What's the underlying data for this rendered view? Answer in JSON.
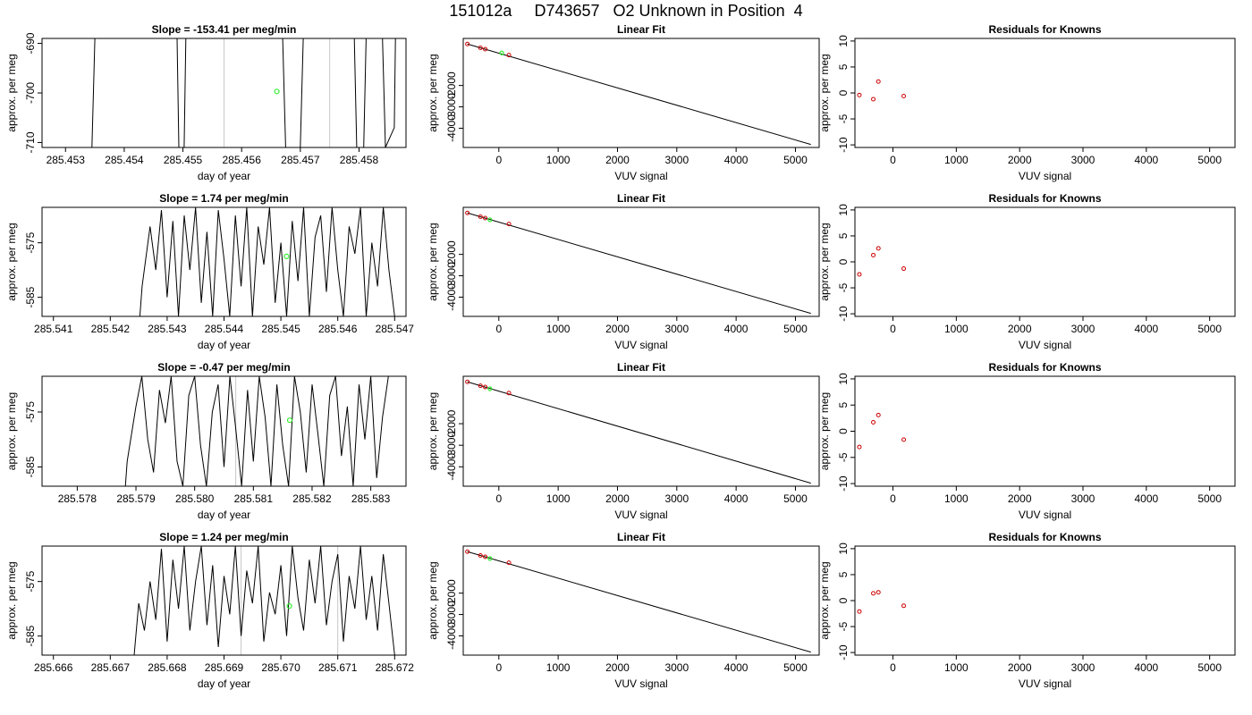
{
  "title": "151012a     D743657   O2 Unknown in Position  4",
  "colors": {
    "known_point": "#cc0000",
    "unknown_point": "#33ee33",
    "marker_line": "#c8c8c8",
    "ink": "#000000"
  },
  "chart_data": [
    {
      "type": "line",
      "row": 0,
      "col": 0,
      "title": "Slope =  -153.41  per meg/min",
      "xlabel": "day of year",
      "ylabel": "approx. per meg",
      "xlim": [
        285.4526,
        285.4588
      ],
      "ylim": [
        -711,
        -689
      ],
      "xticks": [
        285.453,
        285.454,
        285.455,
        285.456,
        285.457,
        285.458
      ],
      "xtick_labels": [
        "285.453",
        "285.454",
        "285.455",
        "285.456",
        "285.457",
        "285.458"
      ],
      "yticks": [
        -690,
        -700,
        -710
      ],
      "ytick_labels": [
        "-690",
        "-700",
        "-710"
      ],
      "vlines": [
        285.4557,
        285.4575
      ],
      "trace": {
        "x": [
          285.45345,
          285.4535,
          285.4549,
          285.45493,
          285.45502,
          285.45505,
          285.4567,
          285.45675,
          285.457,
          285.45705,
          285.45792,
          285.45796,
          285.45808,
          285.45812,
          285.4584,
          285.45845,
          285.4586,
          285.45862
        ],
        "y": [
          -711,
          -689,
          -689,
          -711,
          -711,
          -689,
          -689,
          -711,
          -711,
          -689,
          -689,
          -711,
          -711,
          -689,
          -689,
          -711,
          -707,
          -689
        ]
      },
      "point": {
        "x": 285.4566,
        "y": -699.7
      }
    },
    {
      "type": "scatter",
      "row": 0,
      "col": 1,
      "title": "Linear Fit",
      "xlabel": "VUV signal",
      "ylabel": "approx. per meg",
      "xlim": [
        -600,
        5400
      ],
      "ylim": [
        -4900,
        200
      ],
      "xticks": [
        0,
        1000,
        2000,
        3000,
        4000,
        5000
      ],
      "xtick_labels": [
        "0",
        "1000",
        "2000",
        "3000",
        "4000",
        "5000"
      ],
      "yticks": [
        -2000,
        -3000,
        -4000
      ],
      "ytick_labels": [
        "-2000",
        "-3000",
        "-4000"
      ],
      "fit_line": {
        "x": [
          -530,
          5260
        ],
        "y": [
          -60,
          -4760
        ]
      },
      "knowns": {
        "x": [
          -530,
          -310,
          -230,
          170
        ],
        "y": [
          -60,
          -240,
          -300,
          -580
        ]
      },
      "unknown": {
        "x": 50,
        "y": -480
      }
    },
    {
      "type": "scatter",
      "row": 0,
      "col": 2,
      "title": "Residuals for Knowns",
      "xlabel": "VUV signal",
      "ylabel": "approx. per meg",
      "xlim": [
        -600,
        5400
      ],
      "ylim": [
        -10.5,
        10.5
      ],
      "xticks": [
        0,
        1000,
        2000,
        3000,
        4000,
        5000
      ],
      "xtick_labels": [
        "0",
        "1000",
        "2000",
        "3000",
        "4000",
        "5000"
      ],
      "yticks": [
        10,
        5,
        0,
        -5,
        -10
      ],
      "ytick_labels": [
        "10",
        "5",
        "0",
        "-5",
        "-10"
      ],
      "knowns": {
        "x": [
          -530,
          -310,
          -230,
          170
        ],
        "y": [
          -0.4,
          -1.2,
          2.2,
          -0.6
        ]
      }
    },
    {
      "type": "line",
      "row": 1,
      "col": 0,
      "title": "Slope =  1.74  per meg/min",
      "xlabel": "day of year",
      "ylabel": "approx. per meg",
      "xlim": [
        285.5408,
        285.5472
      ],
      "ylim": [
        -588.5,
        -568.5
      ],
      "xticks": [
        285.541,
        285.542,
        285.543,
        285.544,
        285.545,
        285.546,
        285.547
      ],
      "xtick_labels": [
        "285.541",
        "285.542",
        "285.543",
        "285.544",
        "285.545",
        "285.546",
        "285.547"
      ],
      "yticks": [
        -575,
        -585
      ],
      "ytick_labels": [
        "-575",
        "-585"
      ],
      "vlines": [],
      "trace": {
        "x": [
          285.54252,
          285.54256,
          285.5427,
          285.5428,
          285.5429,
          285.543,
          285.5431,
          285.5432,
          285.5433,
          285.5434,
          285.5435,
          285.5436,
          285.5437,
          285.5438,
          285.5439,
          285.544,
          285.5441,
          285.5442,
          285.5443,
          285.5444,
          285.5445,
          285.5446,
          285.5447,
          285.5448,
          285.5449,
          285.545,
          285.5451,
          285.5452,
          285.5453,
          285.5454,
          285.5455,
          285.5456,
          285.5457,
          285.5458,
          285.5459,
          285.546,
          285.5461,
          285.5462,
          285.5463,
          285.5464,
          285.5465,
          285.5466,
          285.5467,
          285.5468,
          285.5469,
          285.547
        ],
        "y": [
          -588.5,
          -583,
          -572,
          -580,
          -569,
          -585,
          -571,
          -588.5,
          -570,
          -580,
          -568.5,
          -586,
          -573,
          -588.5,
          -569,
          -578,
          -588.5,
          -570,
          -583,
          -568.5,
          -588.5,
          -572,
          -579,
          -568.5,
          -586,
          -575,
          -588.5,
          -571,
          -582,
          -568.5,
          -588.5,
          -574,
          -570,
          -584,
          -568.5,
          -580,
          -588.5,
          -572,
          -577,
          -568.5,
          -588.5,
          -575,
          -583,
          -568.5,
          -580,
          -588.5
        ]
      },
      "point": {
        "x": 285.5451,
        "y": -577.5
      }
    },
    {
      "type": "scatter",
      "row": 1,
      "col": 1,
      "title": "Linear Fit",
      "xlabel": "VUV signal",
      "ylabel": "approx. per meg",
      "xlim": [
        -600,
        5400
      ],
      "ylim": [
        -4900,
        200
      ],
      "xticks": [
        0,
        1000,
        2000,
        3000,
        4000,
        5000
      ],
      "xtick_labels": [
        "0",
        "1000",
        "2000",
        "3000",
        "4000",
        "5000"
      ],
      "yticks": [
        -2000,
        -3000,
        -4000
      ],
      "ytick_labels": [
        "-2000",
        "-3000",
        "-4000"
      ],
      "fit_line": {
        "x": [
          -530,
          5260
        ],
        "y": [
          -60,
          -4760
        ]
      },
      "knowns": {
        "x": [
          -530,
          -310,
          -230,
          170
        ],
        "y": [
          -60,
          -240,
          -300,
          -580
        ]
      },
      "unknown": {
        "x": -150,
        "y": -380
      }
    },
    {
      "type": "scatter",
      "row": 1,
      "col": 2,
      "title": "Residuals for Knowns",
      "xlabel": "VUV signal",
      "ylabel": "approx. per meg",
      "xlim": [
        -600,
        5400
      ],
      "ylim": [
        -10.5,
        10.5
      ],
      "xticks": [
        0,
        1000,
        2000,
        3000,
        4000,
        5000
      ],
      "xtick_labels": [
        "0",
        "1000",
        "2000",
        "3000",
        "4000",
        "5000"
      ],
      "yticks": [
        10,
        5,
        0,
        -5,
        -10
      ],
      "ytick_labels": [
        "10",
        "5",
        "0",
        "-5",
        "-10"
      ],
      "knowns": {
        "x": [
          -530,
          -310,
          -230,
          170
        ],
        "y": [
          -2.4,
          1.3,
          2.6,
          -1.3
        ]
      }
    },
    {
      "type": "line",
      "row": 2,
      "col": 0,
      "title": "Slope =  -0.47  per meg/min",
      "xlabel": "day of year",
      "ylabel": "approx. per meg",
      "xlim": [
        285.5774,
        285.5836
      ],
      "ylim": [
        -588.5,
        -568.5
      ],
      "xticks": [
        285.578,
        285.579,
        285.58,
        285.581,
        285.582,
        285.583
      ],
      "xtick_labels": [
        "285.578",
        "285.579",
        "285.580",
        "285.581",
        "285.582",
        "285.583"
      ],
      "yticks": [
        -575,
        -585
      ],
      "ytick_labels": [
        "-575",
        "-585"
      ],
      "vlines": [
        285.5807
      ],
      "trace": {
        "x": [
          285.57882,
          285.57885,
          285.579,
          285.5791,
          285.5792,
          285.5793,
          285.5794,
          285.5795,
          285.5796,
          285.5797,
          285.5798,
          285.5799,
          285.58,
          285.5801,
          285.5802,
          285.5803,
          285.5804,
          285.5805,
          285.5806,
          285.5807,
          285.5808,
          285.5809,
          285.581,
          285.5811,
          285.5812,
          285.5813,
          285.5814,
          285.5815,
          285.5816,
          285.5817,
          285.5818,
          285.5819,
          285.582,
          285.5821,
          285.5822,
          285.5823,
          285.5824,
          285.5825,
          285.5826,
          285.5827,
          285.5828,
          285.5829,
          285.583,
          285.5831,
          285.5832,
          285.5833
        ],
        "y": [
          -588.5,
          -584,
          -574,
          -568.5,
          -580,
          -586,
          -571,
          -577,
          -568.5,
          -584,
          -588.5,
          -572,
          -568.5,
          -581,
          -588.5,
          -575,
          -570,
          -585,
          -568.5,
          -578,
          -588.5,
          -571,
          -584,
          -568.5,
          -576,
          -588.5,
          -570,
          -581,
          -588.5,
          -568.5,
          -575,
          -586,
          -570,
          -579,
          -588.5,
          -572,
          -568.5,
          -583,
          -574,
          -588.5,
          -570,
          -580,
          -568.5,
          -587,
          -576,
          -568.5
        ]
      },
      "point": {
        "x": 285.58162,
        "y": -576.5
      }
    },
    {
      "type": "scatter",
      "row": 2,
      "col": 1,
      "title": "Linear Fit",
      "xlabel": "VUV signal",
      "ylabel": "approx. per meg",
      "xlim": [
        -600,
        5400
      ],
      "ylim": [
        -4900,
        200
      ],
      "xticks": [
        0,
        1000,
        2000,
        3000,
        4000,
        5000
      ],
      "xtick_labels": [
        "0",
        "1000",
        "2000",
        "3000",
        "4000",
        "5000"
      ],
      "yticks": [
        -2000,
        -3000,
        -4000
      ],
      "ytick_labels": [
        "-2000",
        "-3000",
        "-4000"
      ],
      "fit_line": {
        "x": [
          -530,
          5260
        ],
        "y": [
          -60,
          -4760
        ]
      },
      "knowns": {
        "x": [
          -530,
          -310,
          -230,
          170
        ],
        "y": [
          -60,
          -240,
          -300,
          -580
        ]
      },
      "unknown": {
        "x": -150,
        "y": -380
      }
    },
    {
      "type": "scatter",
      "row": 2,
      "col": 2,
      "title": "Residuals for Knowns",
      "xlabel": "VUV signal",
      "ylabel": "approx. per meg",
      "xlim": [
        -600,
        5400
      ],
      "ylim": [
        -10.5,
        10.5
      ],
      "xticks": [
        0,
        1000,
        2000,
        3000,
        4000,
        5000
      ],
      "xtick_labels": [
        "0",
        "1000",
        "2000",
        "3000",
        "4000",
        "5000"
      ],
      "yticks": [
        10,
        5,
        0,
        -5,
        -10
      ],
      "ytick_labels": [
        "10",
        "5",
        "0",
        "-5",
        "-10"
      ],
      "knowns": {
        "x": [
          -530,
          -310,
          -230,
          170
        ],
        "y": [
          -3.0,
          1.7,
          3.1,
          -1.6
        ]
      }
    },
    {
      "type": "line",
      "row": 3,
      "col": 0,
      "title": "Slope =  1.24  per meg/min",
      "xlabel": "day of year",
      "ylabel": "approx. per meg",
      "xlim": [
        285.6658,
        285.6722
      ],
      "ylim": [
        -588.5,
        -568.5
      ],
      "xticks": [
        285.666,
        285.667,
        285.668,
        285.669,
        285.67,
        285.671,
        285.672
      ],
      "xtick_labels": [
        "285.666",
        "285.667",
        "285.668",
        "285.669",
        "285.670",
        "285.671",
        "285.672"
      ],
      "yticks": [
        -575,
        -585
      ],
      "ytick_labels": [
        "-575",
        "-585"
      ],
      "vlines": [
        285.6693,
        285.671
      ],
      "trace": {
        "x": [
          285.66742,
          285.66745,
          285.6675,
          285.6676,
          285.6677,
          285.6678,
          285.6679,
          285.668,
          285.6681,
          285.6682,
          285.6683,
          285.6684,
          285.6685,
          285.6686,
          285.6687,
          285.6688,
          285.6689,
          285.669,
          285.6691,
          285.6692,
          285.6693,
          285.6694,
          285.6695,
          285.6696,
          285.6697,
          285.6698,
          285.6699,
          285.67,
          285.6701,
          285.6702,
          285.6703,
          285.6704,
          285.6705,
          285.6706,
          285.6707,
          285.6708,
          285.6709,
          285.671,
          285.6711,
          285.6712,
          285.6713,
          285.6714,
          285.6715,
          285.6716,
          285.6717,
          285.6718,
          285.6719,
          285.672
        ],
        "y": [
          -588.5,
          -585,
          -579,
          -584,
          -575,
          -582,
          -569,
          -586,
          -571,
          -580,
          -568.5,
          -584,
          -575,
          -568.5,
          -583,
          -572,
          -587,
          -574,
          -581,
          -568.5,
          -585,
          -573,
          -579,
          -568.5,
          -586,
          -577,
          -581,
          -572,
          -585,
          -568.5,
          -578,
          -584,
          -571,
          -579,
          -568.5,
          -583,
          -575,
          -570,
          -586,
          -574,
          -580,
          -568.5,
          -582,
          -574,
          -584,
          -570,
          -579,
          -588.5
        ]
      },
      "point": {
        "x": 285.67015,
        "y": -579.5
      }
    },
    {
      "type": "scatter",
      "row": 3,
      "col": 1,
      "title": "Linear Fit",
      "xlabel": "VUV signal",
      "ylabel": "approx. per meg",
      "xlim": [
        -600,
        5400
      ],
      "ylim": [
        -4900,
        200
      ],
      "xticks": [
        0,
        1000,
        2000,
        3000,
        4000,
        5000
      ],
      "xtick_labels": [
        "0",
        "1000",
        "2000",
        "3000",
        "4000",
        "5000"
      ],
      "yticks": [
        -2000,
        -3000,
        -4000
      ],
      "ytick_labels": [
        "-2000",
        "-3000",
        "-4000"
      ],
      "fit_line": {
        "x": [
          -530,
          5260
        ],
        "y": [
          -60,
          -4760
        ]
      },
      "knowns": {
        "x": [
          -530,
          -310,
          -230,
          170
        ],
        "y": [
          -60,
          -240,
          -300,
          -580
        ]
      },
      "unknown": {
        "x": -150,
        "y": -380
      }
    },
    {
      "type": "scatter",
      "row": 3,
      "col": 2,
      "title": "Residuals for Knowns",
      "xlabel": "VUV signal",
      "ylabel": "approx. per meg",
      "xlim": [
        -600,
        5400
      ],
      "ylim": [
        -10.5,
        10.5
      ],
      "xticks": [
        0,
        1000,
        2000,
        3000,
        4000,
        5000
      ],
      "xtick_labels": [
        "0",
        "1000",
        "2000",
        "3000",
        "4000",
        "5000"
      ],
      "yticks": [
        10,
        5,
        0,
        -5,
        -10
      ],
      "ytick_labels": [
        "10",
        "5",
        "0",
        "-5",
        "-10"
      ],
      "knowns": {
        "x": [
          -530,
          -310,
          -230,
          170
        ],
        "y": [
          -2.1,
          1.4,
          1.6,
          -1.0
        ]
      }
    }
  ]
}
